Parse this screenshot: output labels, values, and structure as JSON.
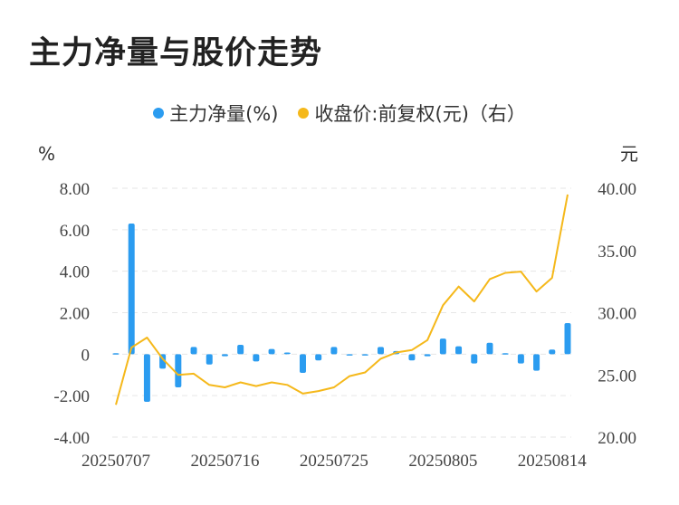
{
  "title": "主力净量与股价走势",
  "legend": {
    "series1": "主力净量(%)",
    "series2": "收盘价:前复权(元)（右）"
  },
  "colors": {
    "bar": "#2b9cf0",
    "line": "#f5b81a",
    "grid": "#e6e6e6"
  },
  "chart_data": {
    "type": "bar+line",
    "title": "主力净量与股价走势",
    "left_unit": "%",
    "right_unit": "元",
    "left_axis": {
      "min": -4,
      "max": 8,
      "ticks": [
        "-4.00",
        "-2.00",
        "0",
        "2.00",
        "4.00",
        "6.00",
        "8.00"
      ]
    },
    "right_axis": {
      "min": 20,
      "max": 40,
      "ticks": [
        "20.00",
        "25.00",
        "30.00",
        "35.00",
        "40.00"
      ]
    },
    "x_tick_labels": [
      {
        "index": 0,
        "label": "20250707"
      },
      {
        "index": 7,
        "label": "20250716"
      },
      {
        "index": 14,
        "label": "20250725"
      },
      {
        "index": 21,
        "label": "20250805"
      },
      {
        "index": 28,
        "label": "20250814"
      }
    ],
    "series": [
      {
        "name": "主力净量(%)",
        "type": "bar",
        "axis": "left",
        "values": [
          0.05,
          6.3,
          -2.3,
          -0.7,
          -1.6,
          0.35,
          -0.5,
          -0.1,
          0.45,
          -0.35,
          0.25,
          0.08,
          -0.9,
          -0.3,
          0.35,
          -0.05,
          -0.05,
          0.35,
          0.15,
          -0.3,
          -0.1,
          0.75,
          0.38,
          -0.45,
          0.55,
          0.05,
          -0.45,
          -0.8,
          0.22,
          1.5
        ]
      },
      {
        "name": "收盘价:前复权(元)（右）",
        "type": "line",
        "axis": "right",
        "values": [
          22.6,
          27.2,
          28.0,
          26.3,
          25.0,
          25.1,
          24.2,
          24.0,
          24.4,
          24.1,
          24.4,
          24.2,
          23.5,
          23.7,
          24.0,
          24.9,
          25.2,
          26.3,
          26.8,
          27.0,
          27.8,
          30.6,
          32.1,
          30.9,
          32.7,
          33.2,
          33.3,
          31.7,
          32.8,
          39.5
        ]
      }
    ]
  }
}
